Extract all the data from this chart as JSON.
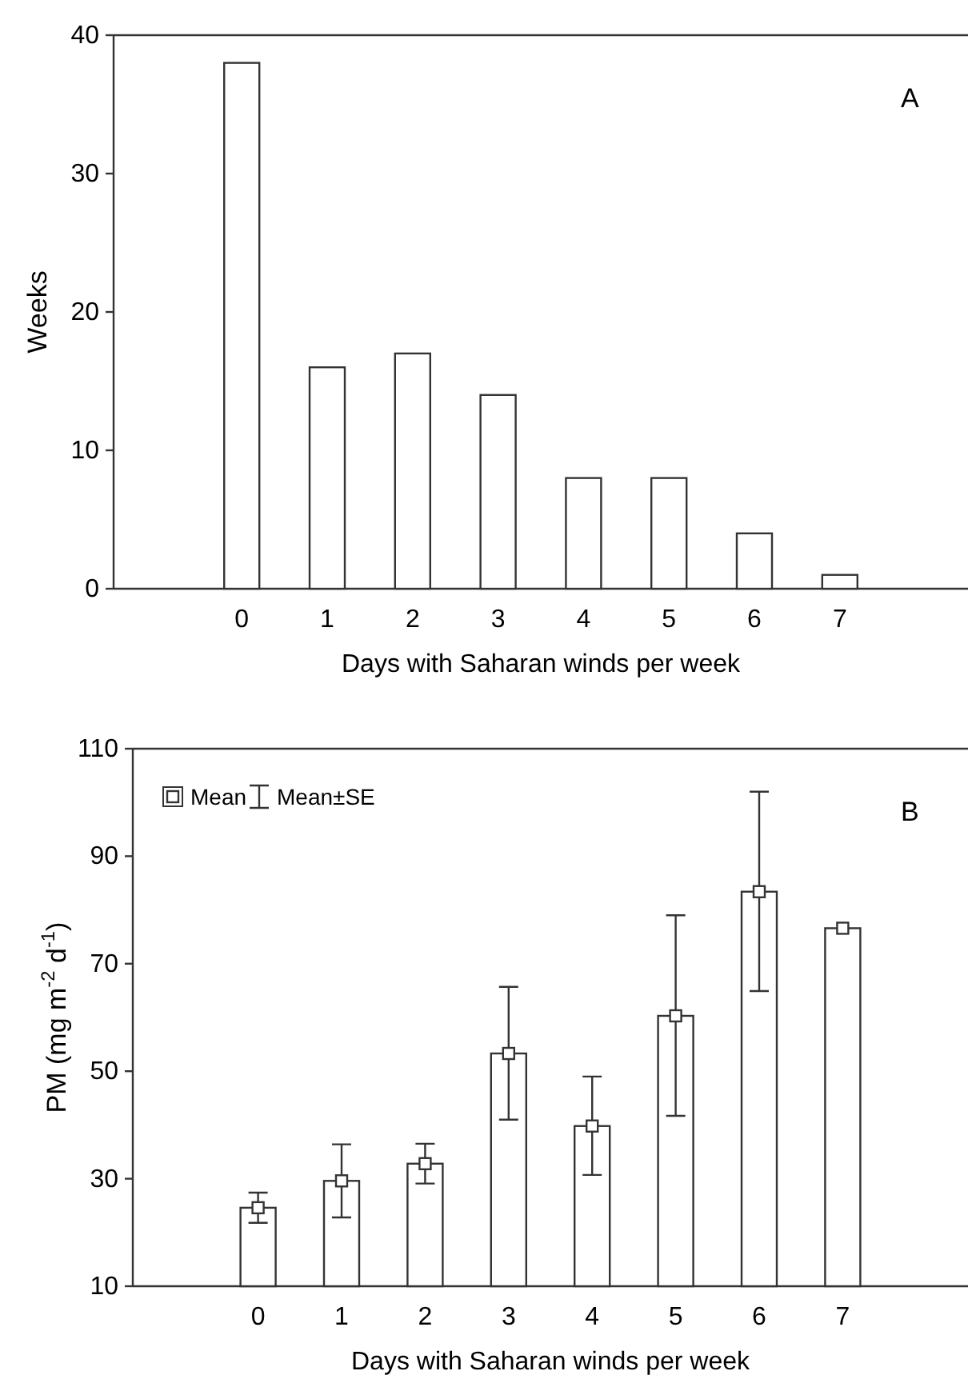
{
  "chart_data": [
    {
      "type": "bar",
      "categories": [
        "0",
        "1",
        "2",
        "3",
        "4",
        "5",
        "6",
        "7"
      ],
      "xlabel": "Days with Saharan winds per week",
      "ylabel": "Weeks",
      "annotations": [
        "A"
      ],
      "ylim": [
        0,
        40
      ],
      "yticks": [
        0,
        10,
        20,
        30,
        40
      ],
      "legend": false,
      "series": [
        {
          "color": "#ffffff",
          "values": [
            38,
            16,
            17,
            14,
            8,
            8,
            4,
            1
          ]
        }
      ]
    },
    {
      "type": "bar",
      "categories": [
        "0",
        "1",
        "2",
        "3",
        "4",
        "5",
        "6",
        "7"
      ],
      "xlabel": "Days with Saharan winds per week",
      "ylabel": "PM (mg m$^{-2}$ d$^{-1}$)",
      "annotations": [
        "B",
        "Mean±SE"
      ],
      "ylim": [
        10,
        110
      ],
      "yticks": [
        10,
        30,
        50,
        70,
        90,
        110
      ],
      "legend": "top left",
      "series": [
        {
          "color": "#ffffff",
          "values": [
            24.6,
            29.6,
            32.8,
            53.3,
            39.8,
            60.3,
            83.4,
            76.6
          ]
        },
        {
          "type": "scatter",
          "name": "Mean",
          "marker": "square",
          "color": "#ffffff",
          "x": [
            "0",
            "1",
            "2",
            "3",
            "4",
            "5",
            "6",
            "7"
          ],
          "values": [
            24.6,
            29.6,
            32.8,
            53.3,
            39.8,
            60.3,
            83.4,
            76.6
          ],
          "errors": [
            [
              21.8,
              27.4
            ],
            [
              22.8,
              36.4
            ],
            [
              29.1,
              36.5
            ],
            [
              41.0,
              65.7
            ],
            [
              30.7,
              49.0
            ],
            [
              41.7,
              79.0
            ],
            [
              64.9,
              102.0
            ],
            null
          ]
        }
      ]
    }
  ]
}
